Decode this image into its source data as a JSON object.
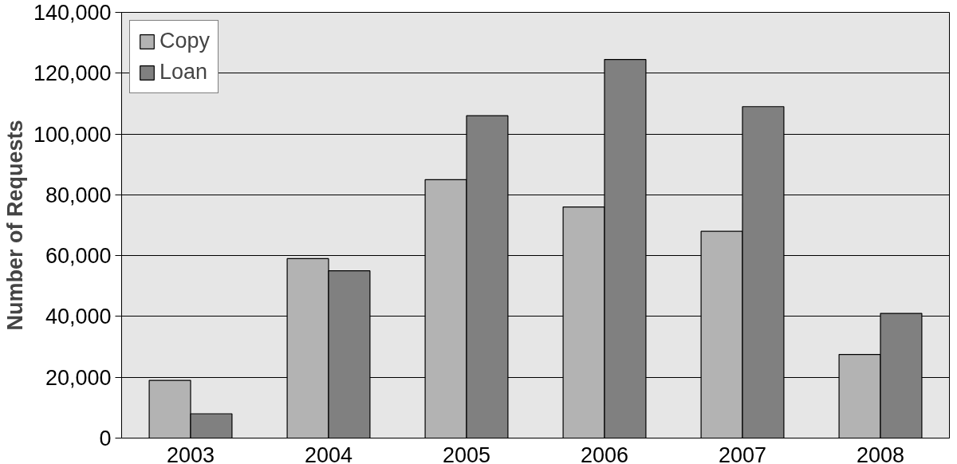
{
  "chart_data": {
    "type": "bar",
    "ylabel": "Number of Requests",
    "categories": [
      "2003",
      "2004",
      "2005",
      "2006",
      "2007",
      "2008"
    ],
    "series": [
      {
        "name": "Copy",
        "color": "#b3b3b3",
        "values": [
          19000,
          59000,
          85000,
          76000,
          68000,
          27500
        ]
      },
      {
        "name": "Loan",
        "color": "#808080",
        "values": [
          8000,
          55000,
          106000,
          124500,
          109000,
          41000
        ]
      }
    ],
    "ylim": [
      0,
      140000
    ],
    "yticks": [
      {
        "value": 0,
        "label": "0"
      },
      {
        "value": 20000,
        "label": "20,000"
      },
      {
        "value": 40000,
        "label": "40,000"
      },
      {
        "value": 60000,
        "label": "60,000"
      },
      {
        "value": 80000,
        "label": "80,000"
      },
      {
        "value": 100000,
        "label": "100,000"
      },
      {
        "value": 120000,
        "label": "120,000"
      },
      {
        "value": 140000,
        "label": "140,000"
      }
    ],
    "grid": "y",
    "legend": "top left"
  }
}
